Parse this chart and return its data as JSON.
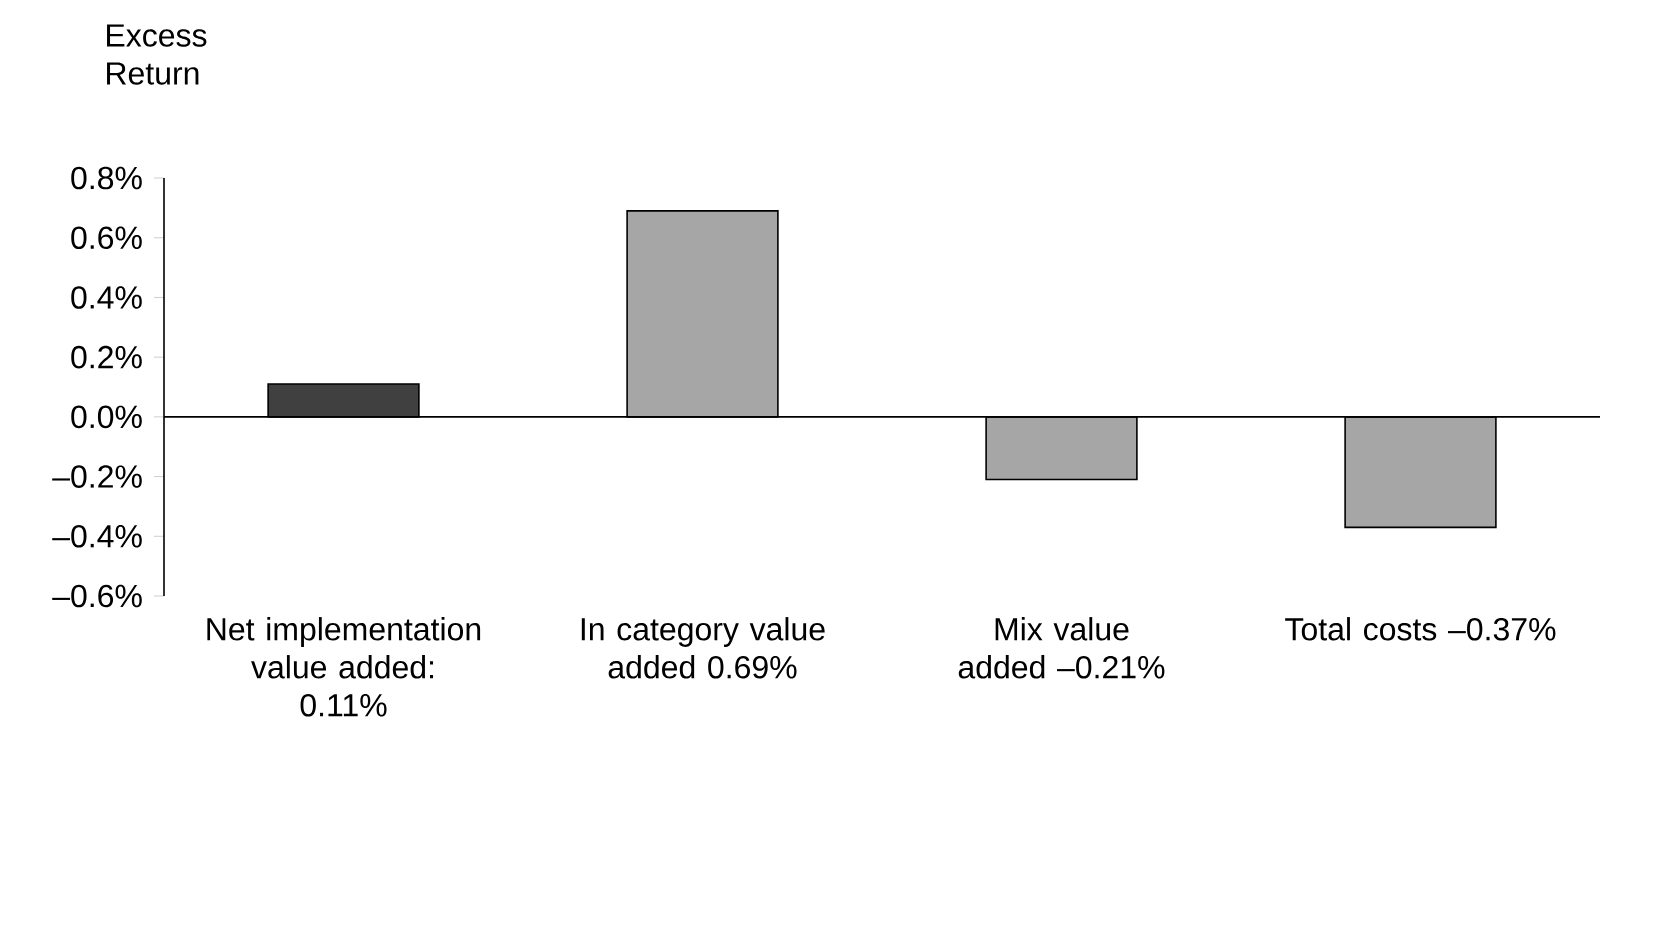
{
  "chart_data": {
    "type": "bar",
    "ylabel": "Excess Return",
    "categories": [
      "Net implementation value added: 0.11%",
      "In category value added 0.69%",
      "Mix value added –0.21%",
      "Total costs –0.37%"
    ],
    "values": [
      0.11,
      0.69,
      -0.21,
      -0.37
    ],
    "colors": [
      "#404040",
      "#a6a6a6",
      "#a6a6a6",
      "#a6a6a6"
    ],
    "ylim": [
      -0.6,
      0.8
    ],
    "yticks": [
      {
        "value": -0.6,
        "label": "–0.6%"
      },
      {
        "value": -0.4,
        "label": "–0.4%"
      },
      {
        "value": -0.2,
        "label": "–0.2%"
      },
      {
        "value": 0.0,
        "label": "0.0%"
      },
      {
        "value": 0.2,
        "label": "0.2%"
      },
      {
        "value": 0.4,
        "label": "0.4%"
      },
      {
        "value": 0.6,
        "label": "0.6%"
      },
      {
        "value": 0.8,
        "label": "0.8%"
      }
    ]
  }
}
